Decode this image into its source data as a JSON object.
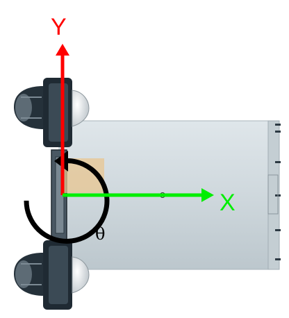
{
  "axes": {
    "y": {
      "label": "Y",
      "color": "#ff0000"
    },
    "x": {
      "label": "X",
      "color": "#00ee00"
    }
  },
  "rotation": {
    "label": "θ",
    "color": "#000000"
  },
  "colors": {
    "hull": "#cdd7dc",
    "hull_edge": "#aab6bd",
    "thruster_dark": "#1f2a33",
    "thruster_mid": "#3b4a55",
    "thruster_cone": "#e6e9eb",
    "origin_marker": "#e8c590"
  }
}
